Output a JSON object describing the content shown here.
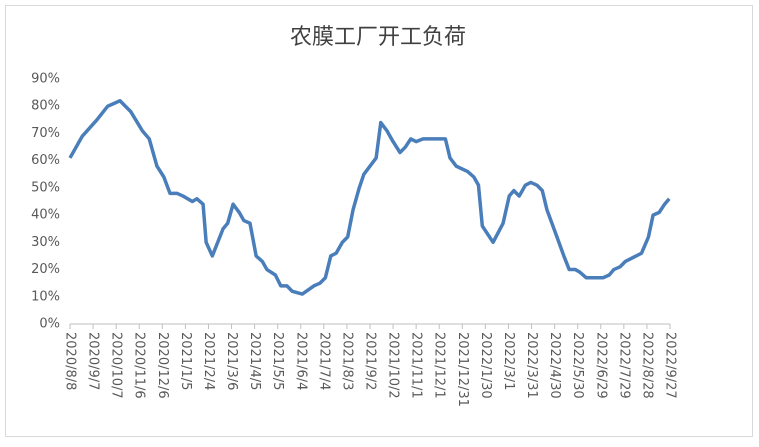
{
  "chart_data": {
    "type": "line",
    "title": "农膜工厂开工负荷",
    "x": [
      "2020/8/8",
      "2020/8/24",
      "2020/9/12",
      "2020/9/26",
      "2020/10/12",
      "2020/10/26",
      "2020/11/10",
      "2020/11/19",
      "2020/11/29",
      "2020/12/8",
      "2020/12/16",
      "2020/12/25",
      "2021/1/2",
      "2021/1/14",
      "2021/1/20",
      "2021/1/28",
      "2021/2/1",
      "2021/2/9",
      "2021/2/23",
      "2021/3/1",
      "2021/3/8",
      "2021/3/16",
      "2021/3/22",
      "2021/3/30",
      "2021/4/7",
      "2021/4/15",
      "2021/4/21",
      "2021/5/2",
      "2021/5/9",
      "2021/5/17",
      "2021/5/24",
      "2021/6/6",
      "2021/6/21",
      "2021/6/29",
      "2021/7/6",
      "2021/7/13",
      "2021/7/20",
      "2021/7/28",
      "2021/8/4",
      "2021/8/11",
      "2021/8/19",
      "2021/8/25",
      "2021/9/10",
      "2021/9/16",
      "2021/9/24",
      "2021/10/2",
      "2021/10/11",
      "2021/10/18",
      "2021/10/25",
      "2021/11/1",
      "2021/11/10",
      "2021/12/9",
      "2021/12/15",
      "2021/12/23",
      "2022/1/7",
      "2022/1/15",
      "2022/1/21",
      "2022/1/26",
      "2022/2/9",
      "2022/2/22",
      "2022/3/2",
      "2022/3/8",
      "2022/3/15",
      "2022/3/23",
      "2022/3/30",
      "2022/4/7",
      "2022/4/14",
      "2022/4/20",
      "2022/5/3",
      "2022/5/12",
      "2022/5/19",
      "2022/5/27",
      "2022/6/2",
      "2022/6/10",
      "2022/7/2",
      "2022/7/10",
      "2022/7/16",
      "2022/7/24",
      "2022/7/31",
      "2022/8/21",
      "2022/8/30",
      "2022/9/5",
      "2022/9/13",
      "2022/9/20",
      "2022/9/26"
    ],
    "series": [
      {
        "color": "#4a7ebb",
        "values": [
          61,
          69,
          75,
          80,
          82,
          78,
          71,
          68,
          58,
          54,
          48,
          48,
          47,
          45,
          46,
          44,
          30,
          25,
          35,
          37,
          44,
          41,
          38,
          37,
          25,
          23,
          20,
          18,
          14,
          14,
          12,
          11,
          14,
          15,
          17,
          25,
          26,
          30,
          32,
          42,
          50,
          55,
          61,
          74,
          71,
          67,
          63,
          65,
          68,
          67,
          68,
          68,
          61,
          58,
          56,
          54,
          51,
          36,
          30,
          37,
          47,
          49,
          47,
          51,
          52,
          51,
          49,
          42,
          32,
          25,
          20,
          20,
          19,
          17,
          17,
          18,
          20,
          21,
          23,
          26,
          32,
          40,
          41,
          44,
          46
        ]
      }
    ],
    "xlim": [
      "2020/8/8",
      "2022/9/27"
    ],
    "xticks": [
      "2020/8/8",
      "2020/9/7",
      "2020/10/7",
      "2020/11/6",
      "2020/12/6",
      "2021/1/5",
      "2021/2/4",
      "2021/3/6",
      "2021/4/5",
      "2021/5/5",
      "2021/6/4",
      "2021/7/4",
      "2021/8/3",
      "2021/9/2",
      "2021/10/2",
      "2021/11/1",
      "2021/12/1",
      "2021/12/31",
      "2022/1/30",
      "2022/3/1",
      "2022/3/31",
      "2022/4/30",
      "2022/5/30",
      "2022/6/29",
      "2022/7/29",
      "2022/8/28",
      "2022/9/27"
    ],
    "ylim": [
      0,
      90
    ],
    "yticks": [
      {
        "value": 0,
        "label": "0%"
      },
      {
        "value": 10,
        "label": "10%"
      },
      {
        "value": 20,
        "label": "20%"
      },
      {
        "value": 30,
        "label": "30%"
      },
      {
        "value": 40,
        "label": "40%"
      },
      {
        "value": 50,
        "label": "50%"
      },
      {
        "value": 60,
        "label": "60%"
      },
      {
        "value": 70,
        "label": "70%"
      },
      {
        "value": 80,
        "label": "80%"
      },
      {
        "value": 90,
        "label": "90%"
      }
    ],
    "grid": false
  }
}
